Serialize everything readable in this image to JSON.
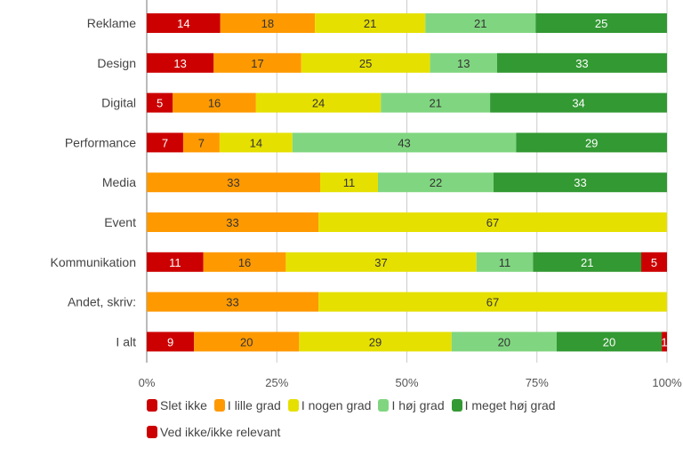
{
  "chart_data": {
    "type": "bar",
    "orientation": "horizontal",
    "stacked": true,
    "normalized": true,
    "title": "",
    "xlabel": "",
    "ylabel": "",
    "xlim": [
      0,
      100
    ],
    "grid": true,
    "legend_position": "bottom",
    "x_ticks": [
      "0%",
      "25%",
      "50%",
      "75%",
      "100%"
    ],
    "categories": [
      "Reklame",
      "Design",
      "Digital",
      "Performance",
      "Media",
      "Event",
      "Kommunikation",
      "Andet, skriv:",
      "I alt"
    ],
    "series": [
      {
        "name": "Slet ikke",
        "color": "#cc0000",
        "label_color": "#ffffff",
        "values": [
          14,
          13,
          5,
          7,
          0,
          0,
          11,
          0,
          9
        ]
      },
      {
        "name": "I lille grad",
        "color": "#ff9900",
        "label_color": "#333333",
        "values": [
          18,
          17,
          16,
          7,
          33,
          33,
          16,
          33,
          20
        ]
      },
      {
        "name": "I nogen grad",
        "color": "#e6e000",
        "label_color": "#333333",
        "values": [
          21,
          25,
          24,
          14,
          11,
          67,
          37,
          67,
          29
        ]
      },
      {
        "name": "I høj grad",
        "color": "#80d680",
        "label_color": "#333333",
        "values": [
          21,
          13,
          21,
          43,
          22,
          0,
          11,
          0,
          20
        ]
      },
      {
        "name": "I meget høj grad",
        "color": "#339933",
        "label_color": "#ffffff",
        "values": [
          25,
          33,
          34,
          29,
          33,
          0,
          21,
          0,
          20
        ]
      },
      {
        "name": "Ved ikke/ikke relevant",
        "color": "#cc0000",
        "label_color": "#ffffff",
        "values": [
          0,
          0,
          0,
          0,
          0,
          0,
          5,
          0,
          1
        ]
      }
    ]
  }
}
